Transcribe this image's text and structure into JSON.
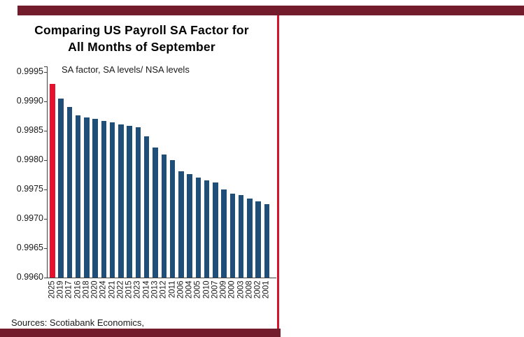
{
  "page": {
    "title_line1": "Comparing US Payroll SA Factor for",
    "title_line2": "All Months of September",
    "subtitle": "SA factor, SA levels/ NSA levels",
    "source": "Sources: Scotiabank Economics,"
  },
  "colors": {
    "band_maroon": "#731d2c",
    "panel_rule_red": "#d8122a",
    "bar_blue": "#1f4e79",
    "bar_highlight_red": "#e8112d",
    "axis_gray": "#404040"
  },
  "chart_data": {
    "type": "bar",
    "title": "Comparing US Payroll SA Factor for All Months of September",
    "subtitle": "SA factor, SA levels/ NSA levels",
    "categories": [
      "2025",
      "2019",
      "2017",
      "2016",
      "2018",
      "2020",
      "2024",
      "2021",
      "2022",
      "2015",
      "2023",
      "2014",
      "2013",
      "2012",
      "2011",
      "2006",
      "2004",
      "2005",
      "2010",
      "2007",
      "2009",
      "2000",
      "2003",
      "2008",
      "2002",
      "2001"
    ],
    "values": [
      0.9993,
      0.99905,
      0.9989,
      0.99876,
      0.99873,
      0.9987,
      0.99867,
      0.99864,
      0.99861,
      0.99858,
      0.99856,
      0.9984,
      0.99822,
      0.9981,
      0.998,
      0.99781,
      0.99776,
      0.9977,
      0.99766,
      0.99762,
      0.9975,
      0.99743,
      0.9974,
      0.99735,
      0.9973,
      0.99725
    ],
    "highlight_category": "2025",
    "ylim": [
      0.996,
      0.9995
    ],
    "yticks": [
      0.996,
      0.9965,
      0.997,
      0.9975,
      0.998,
      0.9985,
      0.999,
      0.9995
    ],
    "ytick_format_decimals": 4,
    "xlabel": "",
    "ylabel": "",
    "grid": false,
    "legend": "none",
    "x_label_rotation": 90
  }
}
